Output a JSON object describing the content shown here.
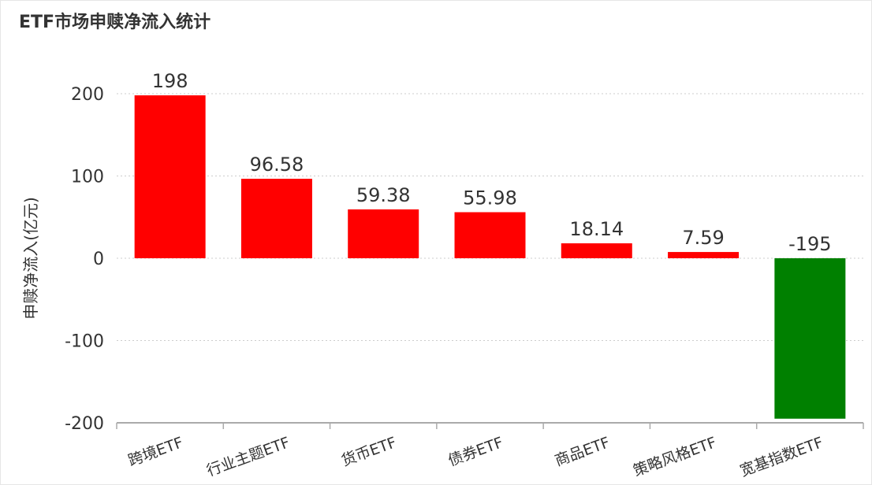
{
  "chart_data": {
    "type": "bar",
    "title": "ETF市场申赎净流入统计",
    "ylabel": "申赎净流入(亿元)",
    "xlabel": "",
    "categories": [
      "跨境ETF",
      "行业主题ETF",
      "货币ETF",
      "债券ETF",
      "商品ETF",
      "策略风格ETF",
      "宽基指数ETF"
    ],
    "values": [
      198,
      96.58,
      59.38,
      55.98,
      18.14,
      7.59,
      -195
    ],
    "value_labels": [
      "198",
      "96.58",
      "59.38",
      "55.98",
      "18.14",
      "7.59",
      "-195"
    ],
    "ylim": [
      -200,
      200
    ],
    "yticks": [
      -200,
      -100,
      0,
      100,
      200
    ],
    "ytick_labels": [
      "-200",
      "-100",
      "0",
      "100",
      "200"
    ],
    "grid": true,
    "colors": {
      "positive": "#ff0000",
      "negative": "#008000"
    }
  }
}
